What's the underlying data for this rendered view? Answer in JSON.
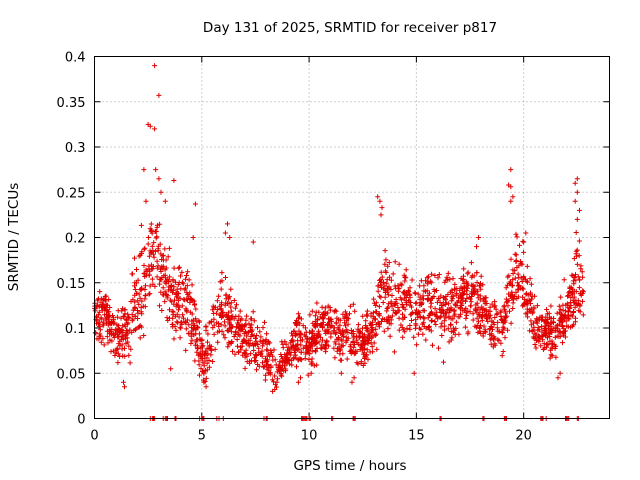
{
  "chart_data": {
    "type": "scatter",
    "title": "Day 131 of 2025, SRMTID for receiver p817",
    "xlabel": "GPS time / hours",
    "ylabel": "SRMTID / TECUs",
    "xlim": [
      0,
      24
    ],
    "ylim": [
      0,
      0.4
    ],
    "xticks": [
      0,
      5,
      10,
      15,
      20
    ],
    "yticks": [
      0,
      0.05,
      0.1,
      0.15,
      0.2,
      0.25,
      0.3,
      0.35,
      0.4
    ],
    "xtick_labels": [
      "0",
      "5",
      "10",
      "15",
      "20"
    ],
    "ytick_labels": [
      "0",
      "0.05",
      "0.1",
      "0.15",
      "0.2",
      "0.25",
      "0.3",
      "0.35",
      "0.4"
    ],
    "grid": true,
    "marker": "+",
    "color": "#e00000",
    "series": [
      {
        "name": "SRMTID",
        "envelope_hours": [
          0.0,
          0.5,
          1.0,
          1.5,
          2.0,
          2.5,
          2.8,
          3.0,
          3.3,
          3.6,
          4.0,
          4.5,
          5.0,
          5.5,
          6.0,
          6.5,
          7.0,
          7.5,
          8.0,
          8.5,
          9.0,
          9.5,
          10.0,
          10.5,
          11.0,
          11.5,
          12.0,
          12.5,
          13.0,
          13.5,
          14.0,
          14.5,
          15.0,
          15.5,
          16.0,
          16.5,
          17.0,
          17.5,
          18.0,
          18.5,
          19.0,
          19.5,
          20.0,
          20.5,
          21.0,
          21.5,
          22.0,
          22.5,
          22.8
        ],
        "envelope_center": [
          0.11,
          0.12,
          0.09,
          0.1,
          0.13,
          0.17,
          0.19,
          0.17,
          0.15,
          0.13,
          0.13,
          0.12,
          0.06,
          0.1,
          0.12,
          0.1,
          0.09,
          0.08,
          0.07,
          0.05,
          0.07,
          0.09,
          0.08,
          0.1,
          0.1,
          0.09,
          0.09,
          0.08,
          0.1,
          0.14,
          0.13,
          0.13,
          0.12,
          0.13,
          0.12,
          0.12,
          0.13,
          0.14,
          0.13,
          0.1,
          0.1,
          0.15,
          0.16,
          0.1,
          0.1,
          0.09,
          0.12,
          0.15,
          0.14
        ],
        "envelope_spread": [
          0.03,
          0.03,
          0.03,
          0.04,
          0.05,
          0.06,
          0.06,
          0.05,
          0.04,
          0.04,
          0.04,
          0.04,
          0.03,
          0.04,
          0.04,
          0.03,
          0.03,
          0.03,
          0.03,
          0.02,
          0.02,
          0.03,
          0.03,
          0.03,
          0.03,
          0.03,
          0.03,
          0.03,
          0.03,
          0.05,
          0.04,
          0.04,
          0.03,
          0.04,
          0.04,
          0.04,
          0.04,
          0.04,
          0.04,
          0.03,
          0.03,
          0.04,
          0.04,
          0.03,
          0.03,
          0.03,
          0.03,
          0.05,
          0.04
        ],
        "outliers": [
          [
            2.8,
            0.39
          ],
          [
            3.0,
            0.357
          ],
          [
            2.5,
            0.325
          ],
          [
            2.6,
            0.323
          ],
          [
            2.8,
            0.32
          ],
          [
            2.3,
            0.275
          ],
          [
            2.85,
            0.275
          ],
          [
            3.0,
            0.265
          ],
          [
            3.7,
            0.263
          ],
          [
            3.1,
            0.25
          ],
          [
            3.3,
            0.24
          ],
          [
            2.4,
            0.24
          ],
          [
            4.7,
            0.237
          ],
          [
            4.6,
            0.2
          ],
          [
            19.4,
            0.275
          ],
          [
            19.3,
            0.258
          ],
          [
            19.4,
            0.256
          ],
          [
            19.5,
            0.245
          ],
          [
            19.4,
            0.24
          ],
          [
            22.5,
            0.265
          ],
          [
            22.4,
            0.26
          ],
          [
            22.5,
            0.25
          ],
          [
            22.4,
            0.24
          ],
          [
            22.6,
            0.23
          ],
          [
            22.5,
            0.22
          ],
          [
            13.2,
            0.245
          ],
          [
            13.3,
            0.24
          ],
          [
            13.4,
            0.233
          ],
          [
            13.35,
            0.225
          ],
          [
            6.2,
            0.215
          ],
          [
            6.1,
            0.205
          ],
          [
            6.3,
            0.2
          ],
          [
            7.4,
            0.195
          ],
          [
            17.9,
            0.2
          ],
          [
            17.8,
            0.19
          ],
          [
            20.1,
            0.205
          ],
          [
            20.0,
            0.195
          ],
          [
            8.3,
            0.03
          ],
          [
            8.4,
            0.032
          ],
          [
            8.5,
            0.04
          ],
          [
            5.2,
            0.035
          ],
          [
            5.1,
            0.04
          ],
          [
            3.55,
            0.055
          ],
          [
            1.4,
            0.035
          ],
          [
            1.35,
            0.04
          ],
          [
            21.6,
            0.045
          ],
          [
            21.7,
            0.05
          ],
          [
            14.9,
            0.05
          ],
          [
            9.5,
            0.04
          ],
          [
            9.6,
            0.045
          ],
          [
            10.1,
            0.05
          ],
          [
            12.0,
            0.04
          ],
          [
            12.1,
            0.045
          ],
          [
            11.5,
            0.05
          ]
        ],
        "baseline_hours": [
          2.6,
          2.7,
          2.75,
          2.8,
          3.2,
          3.3,
          3.35,
          3.4,
          3.75,
          3.8,
          4.9,
          5.0,
          5.05,
          5.1,
          5.7,
          5.8,
          6.0,
          7.9,
          8.0,
          8.05,
          9.65,
          9.7,
          9.75,
          9.8,
          9.85,
          9.9,
          10.0,
          10.05,
          11.05,
          11.1,
          12.05,
          12.1,
          12.15,
          16.1,
          16.15,
          18.1,
          18.15,
          19.1,
          19.15,
          19.2,
          20.8,
          20.85,
          20.9,
          21.05,
          21.95,
          22.0,
          22.05,
          22.1,
          22.5,
          22.55
        ]
      }
    ]
  }
}
